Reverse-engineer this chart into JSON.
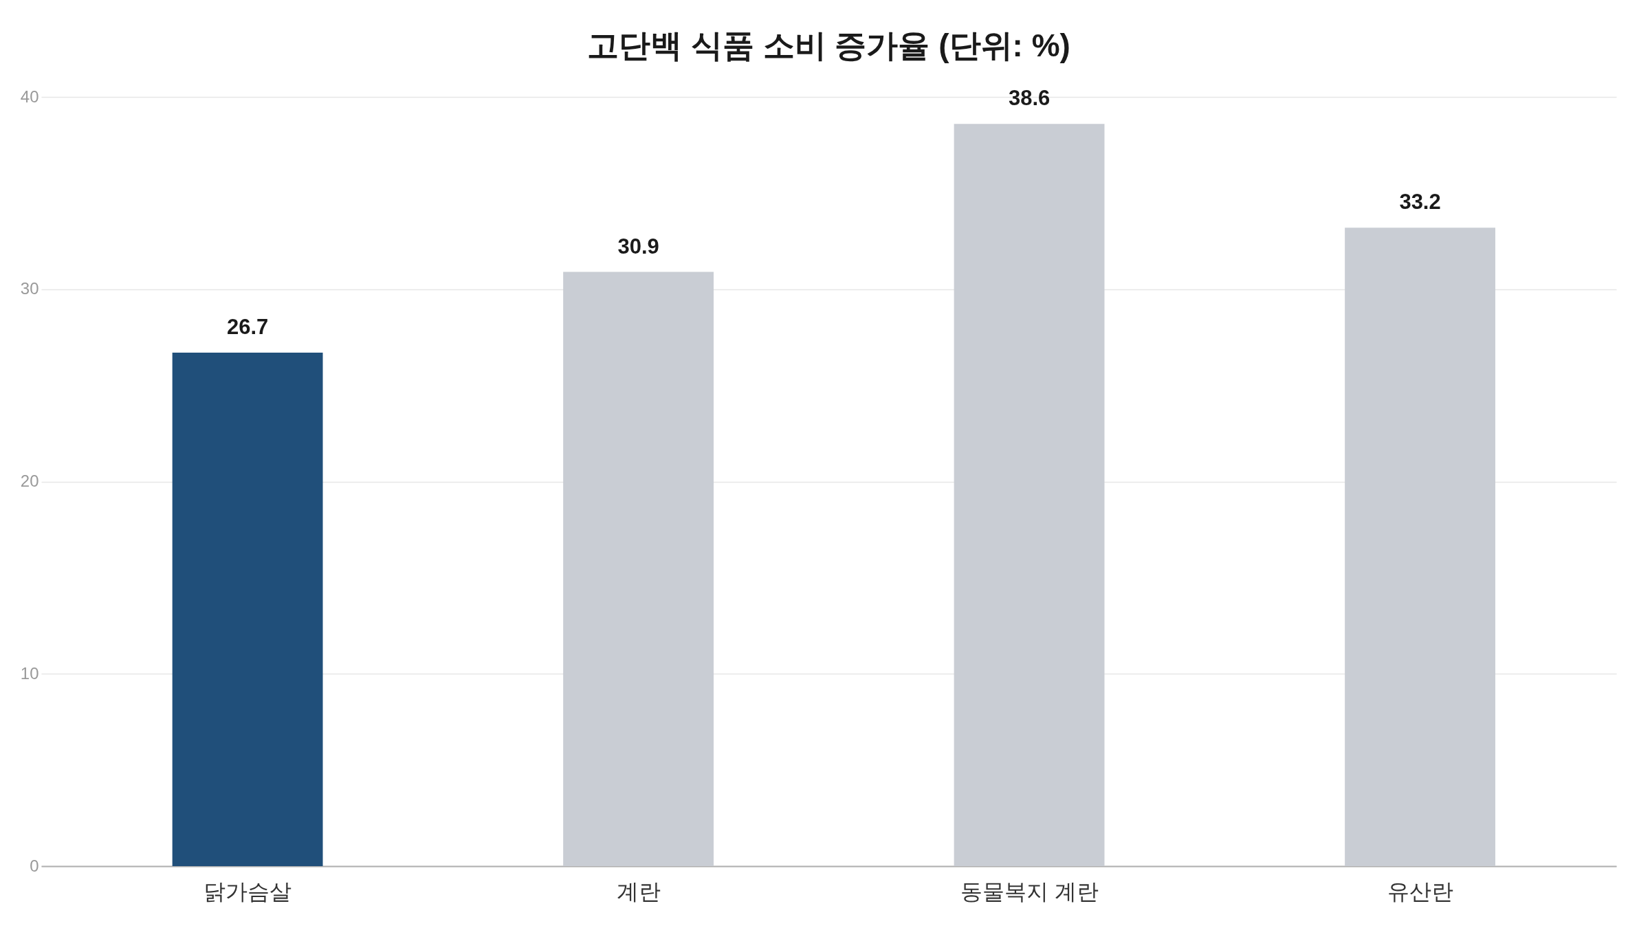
{
  "chart_data": {
    "type": "bar",
    "title": "고단백 식품 소비 증가율 (단위: %)",
    "categories": [
      "닭가슴살",
      "계란",
      "동물복지 계란",
      "유산란"
    ],
    "values": [
      26.7,
      30.9,
      38.6,
      33.2
    ],
    "colors": [
      "#204f7a",
      "#c9cdd4",
      "#c9cdd4",
      "#c9cdd4"
    ],
    "ylim": [
      0,
      40
    ],
    "yticks": [
      0,
      10,
      20,
      30,
      40
    ],
    "grid": "y",
    "data_labels": true
  }
}
